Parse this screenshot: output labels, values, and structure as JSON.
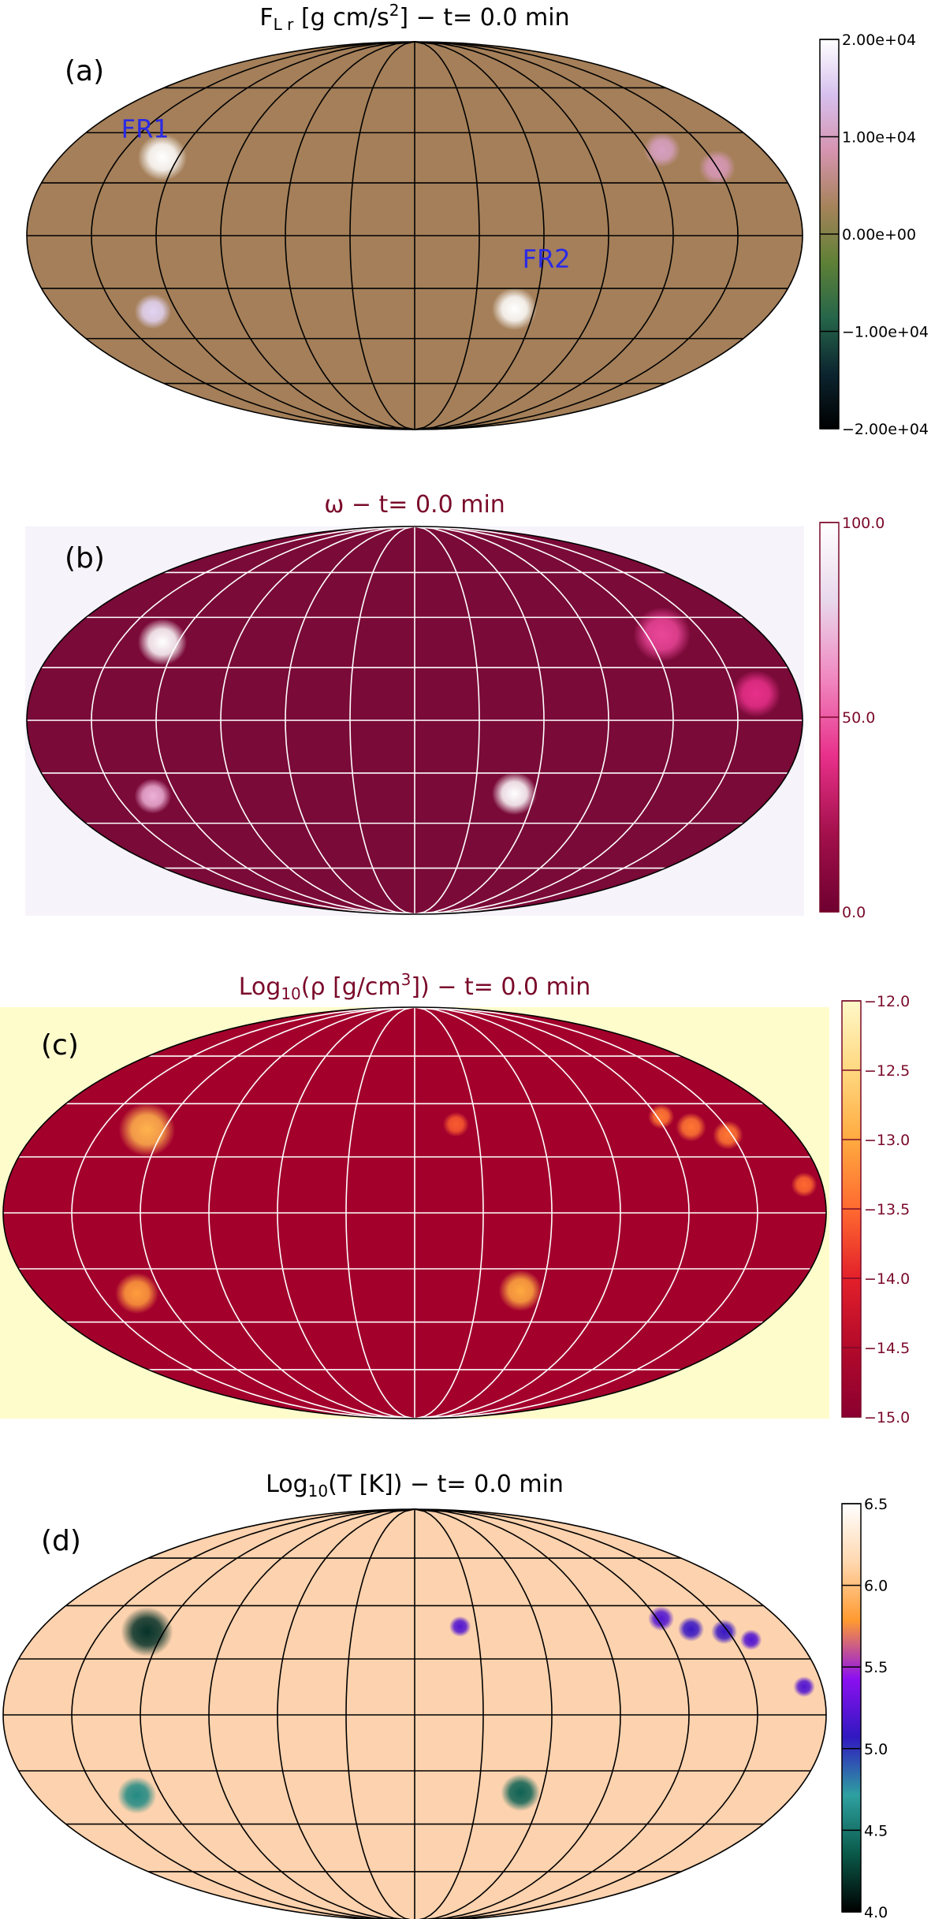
{
  "chart_data": [
    {
      "type": "heatmap",
      "panel_label": "(a)",
      "title": "F_Lr [g cm/s²] − t=  0.0 min",
      "title_parts": {
        "main": "F",
        "sub": "L r",
        "rest_a": " [g cm/s",
        "sup": "2",
        "rest_b": "] − t=  0.0 min"
      },
      "projection": "Mollweide",
      "colorbar": {
        "range": [
          -20000,
          20000
        ],
        "ticks": [
          "2.00e+04",
          "1.00e+04",
          "0.00e+00",
          "−1.00e+04",
          "−2.00e+04"
        ],
        "colors": [
          "#000000",
          "#0c2530",
          "#26664a",
          "#5f8136",
          "#a6835b",
          "#d694b0",
          "#d6c0ee",
          "#ffffff"
        ]
      },
      "background_color": "#a47f59",
      "grid_color": "#000000",
      "annotations": [
        {
          "text": "FR1",
          "lon": -145,
          "lat": 38
        },
        {
          "text": "FR2",
          "lon": 62,
          "lat": -12
        }
      ],
      "features": [
        {
          "lon": -128,
          "lat": 30,
          "value": 20000,
          "r": 1.2
        },
        {
          "lon": -132,
          "lat": -29,
          "value": 16000,
          "r": 0.9
        },
        {
          "lon": 50,
          "lat": -28,
          "value": 20000,
          "r": 1.1
        },
        {
          "lon": 128,
          "lat": 33,
          "value": 10000,
          "r": 0.9
        },
        {
          "lon": 150,
          "lat": 26,
          "value": 9000,
          "r": 0.9
        }
      ]
    },
    {
      "type": "heatmap",
      "panel_label": "(b)",
      "title": "ω − t=  0.0 min",
      "projection": "Mollweide",
      "colorbar": {
        "range": [
          0,
          100
        ],
        "ticks": [
          "100.0",
          "50.0",
          "0.0"
        ],
        "colors": [
          "#6e0030",
          "#a3104b",
          "#e8308a",
          "#f088c0",
          "#e8d8ec",
          "#ffffff"
        ]
      },
      "background_color": "#7a0a38",
      "grid_color": "#ffffff",
      "features": [
        {
          "lon": -128,
          "lat": 30,
          "value": 100,
          "r": 1.2
        },
        {
          "lon": -132,
          "lat": -29,
          "value": 70,
          "r": 0.9
        },
        {
          "lon": 50,
          "lat": -28,
          "value": 100,
          "r": 1.1
        },
        {
          "lon": 128,
          "lat": 33,
          "value": 45,
          "r": 1.4
        },
        {
          "lon": 160,
          "lat": 10,
          "value": 40,
          "r": 1.2
        }
      ]
    },
    {
      "type": "heatmap",
      "panel_label": "(c)",
      "title": "Log₁₀(ρ [g/cm³]) − t=  0.0 min",
      "title_parts": {
        "main": "Log",
        "sub": "10",
        "rest_a": "(ρ [g/cm",
        "sup": "3",
        "rest_b": "]) − t=  0.0 min"
      },
      "projection": "Mollweide",
      "colorbar": {
        "range": [
          -15.0,
          -12.0
        ],
        "ticks": [
          "−12.0",
          "−12.5",
          "−13.0",
          "−13.5",
          "−14.0",
          "−14.5",
          "−15.0"
        ],
        "colors": [
          "#8a0030",
          "#b30a2a",
          "#e3202a",
          "#ff6a30",
          "#ffaa40",
          "#ffd880",
          "#fff8c8"
        ]
      },
      "background_color": "#a3002c",
      "grid_color": "#ffffff",
      "outside_color": "#fffccc",
      "features": [
        {
          "lon": -128,
          "lat": 30,
          "value": -12.9,
          "r": 1.3
        },
        {
          "lon": -132,
          "lat": -29,
          "value": -13.1,
          "r": 1.0
        },
        {
          "lon": 50,
          "lat": -28,
          "value": -13.0,
          "r": 1.0
        },
        {
          "lon": 20,
          "lat": 32,
          "value": -13.6,
          "r": 0.6
        },
        {
          "lon": 122,
          "lat": 35,
          "value": -13.4,
          "r": 0.6
        },
        {
          "lon": 133,
          "lat": 31,
          "value": -13.4,
          "r": 0.7
        },
        {
          "lon": 148,
          "lat": 28,
          "value": -13.4,
          "r": 0.7
        },
        {
          "lon": 172,
          "lat": 10,
          "value": -13.5,
          "r": 0.6
        }
      ]
    },
    {
      "type": "heatmap",
      "panel_label": "(d)",
      "title": "Log₁₀(T [K]) − t=  0.0 min",
      "title_parts": {
        "main": "Log",
        "sub": "10",
        "rest_a": "(T [K]) − t=  0.0 min",
        "sup": "",
        "rest_b": ""
      },
      "projection": "Mollweide",
      "colorbar": {
        "range": [
          4.0,
          6.5
        ],
        "ticks": [
          "6.5",
          "6.0",
          "5.5",
          "5.0",
          "4.5",
          "4.0"
        ],
        "colors": [
          "#000000",
          "#0a5a4a",
          "#2ea0a0",
          "#3018c0",
          "#8c10f0",
          "#ff9a30",
          "#ffd8b0",
          "#ffffff"
        ]
      },
      "background_color": "#fdd2ae",
      "grid_color": "#000000",
      "features": [
        {
          "lon": -128,
          "lat": 30,
          "value": 4.2,
          "r": 1.2
        },
        {
          "lon": -132,
          "lat": -29,
          "value": 4.6,
          "r": 0.9
        },
        {
          "lon": 50,
          "lat": -28,
          "value": 4.4,
          "r": 0.9
        },
        {
          "lon": 22,
          "lat": 32,
          "value": 5.2,
          "r": 0.5
        },
        {
          "lon": 122,
          "lat": 35,
          "value": 5.2,
          "r": 0.6
        },
        {
          "lon": 133,
          "lat": 31,
          "value": 5.1,
          "r": 0.6
        },
        {
          "lon": 148,
          "lat": 30,
          "value": 5.1,
          "r": 0.6
        },
        {
          "lon": 158,
          "lat": 27,
          "value": 5.2,
          "r": 0.5
        },
        {
          "lon": 172,
          "lat": 10,
          "value": 5.2,
          "r": 0.5
        }
      ]
    }
  ]
}
